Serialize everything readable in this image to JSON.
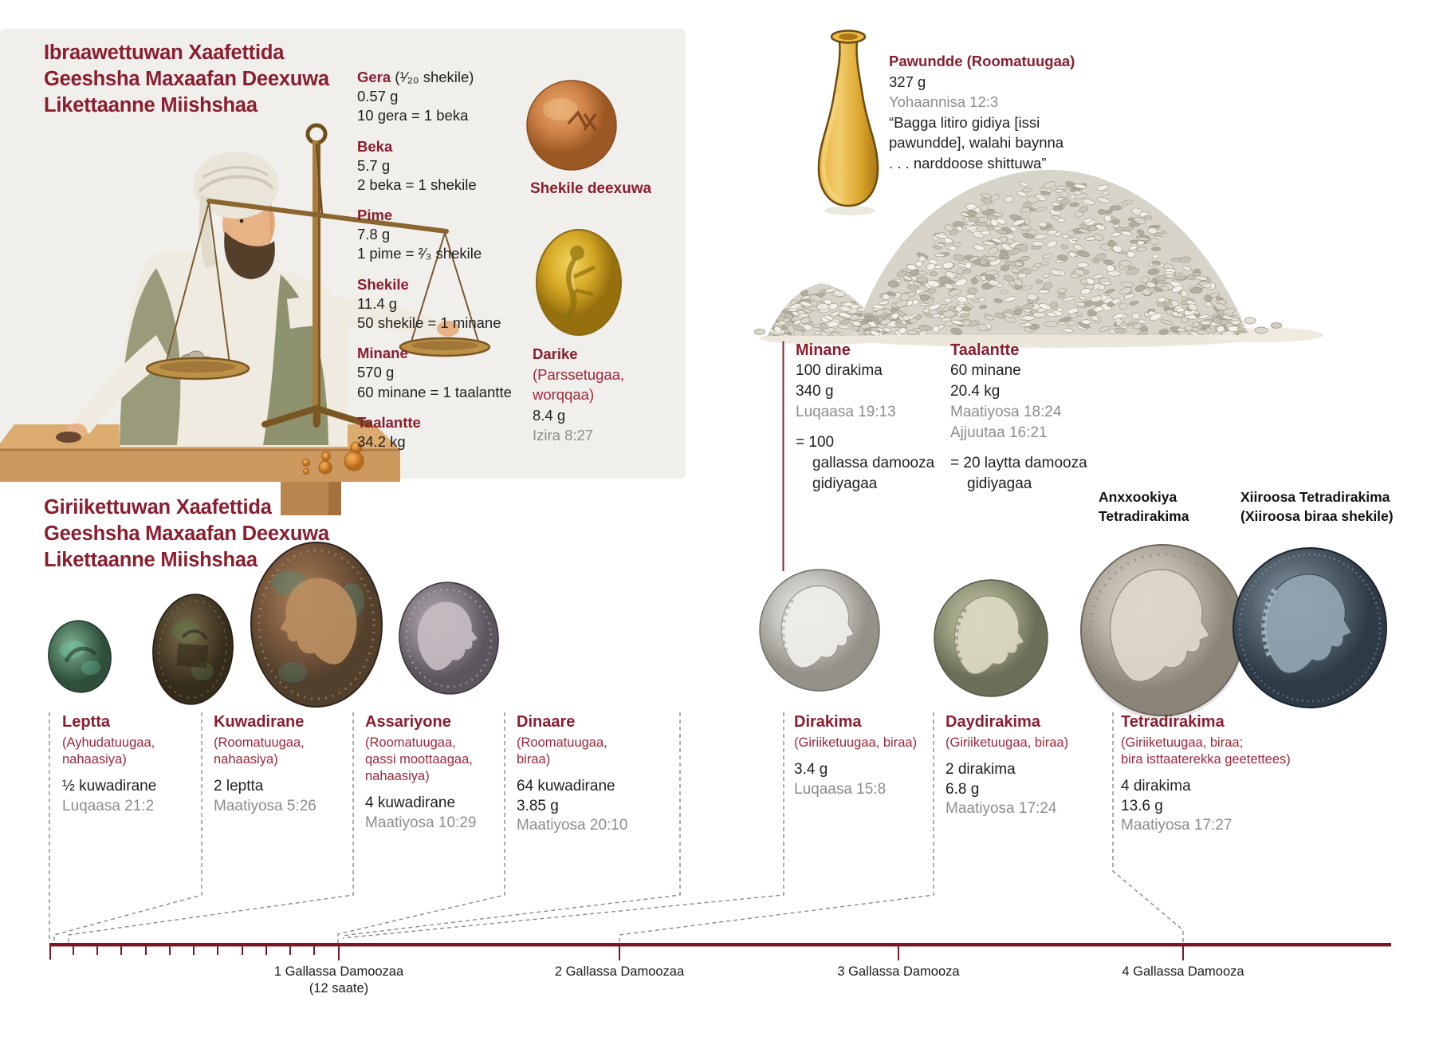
{
  "hebrew_section": {
    "title_lines": [
      "Ibraawettuwan Xaafettida",
      "Geeshsha Maxaafan Deexuwa",
      "Likettaanne Miishshaa"
    ],
    "weights": [
      {
        "name": "Gera",
        "suffix": " (¹⁄₂₀ shekile)",
        "line1": "0.57 g",
        "line2": "10 gera = 1 beka"
      },
      {
        "name": "Beka",
        "line1": "5.7 g",
        "line2": "2 beka = 1 shekile"
      },
      {
        "name": "Pime",
        "line1": "7.8 g",
        "line2": "1 pime = ²⁄₃ shekile"
      },
      {
        "name": "Shekile",
        "line1": "11.4 g",
        "line2": "50 shekile = 1 minane"
      },
      {
        "name": "Minane",
        "line1": "570 g",
        "line2": "60 minane = 1 taalantte"
      },
      {
        "name": "Taalantte",
        "line1": "34.2 kg"
      }
    ],
    "shekel_stone_caption": "Shekile deexuwa",
    "daric": {
      "name": "Darike",
      "origin_line1": "(Parssetugaa,",
      "origin_line2": "worqqaa)",
      "weight": "8.4 g",
      "ref": "Izira 8:27"
    }
  },
  "pound": {
    "heading": "Pawundde (Roomatuugaa)",
    "weight": "327 g",
    "ref": "Yohaannisa 12:3",
    "quote_line1": "“Bagga litiro gidiya [issi",
    "quote_line2": "pawundde], walahi baynna",
    "quote_line3": ". . . narddoose shittuwa”"
  },
  "mina": {
    "name": "Minane",
    "line1": "100 dirakima",
    "line2": "340 g",
    "ref": "Luqaasa 19:13",
    "equiv_line1": "= 100",
    "equiv_line2": "gallassa damooza",
    "equiv_line3": "gidiyagaa"
  },
  "talent": {
    "name": "Taalantte",
    "line1": "60 minane",
    "line2": "20.4 kg",
    "ref1": "Maatiyosa 18:24",
    "ref2": "Ajjuutaa 16:21",
    "equiv_line1": "= 20 laytta damooza",
    "equiv_line2": "gidiyagaa"
  },
  "greek_section": {
    "title_lines": [
      "Giriikettuwan Xaafettida",
      "Geeshsha Maxaafan Deexuwa",
      "Likettaanne Miishshaa"
    ]
  },
  "coins": [
    {
      "name": "Leptta",
      "origin_line1": "(Ayhudatuugaa,",
      "origin_line2": "nahaasiya)",
      "value_line1": "½ kuwadirane",
      "ref": "Luqaasa 21:2"
    },
    {
      "name": "Kuwadirane",
      "origin_line1": "(Roomatuugaa,",
      "origin_line2": "nahaasiya)",
      "value_line1": "2 leptta",
      "ref": "Maatiyosa 5:26"
    },
    {
      "name": "Assariyone",
      "origin_line1": "(Roomatuugaa,",
      "origin_line2": "qassi moottaagaa,",
      "origin_line3": "nahaasiya)",
      "value_line1": "4 kuwadirane",
      "ref": "Maatiyosa 10:29"
    },
    {
      "name": "Dinaare",
      "origin_line1": "(Roomatuugaa,",
      "origin_line2": "biraa)",
      "value_line1": "64 kuwadirane",
      "value_line2": "3.85 g",
      "ref": "Maatiyosa 20:10"
    },
    {
      "name": "Dirakima",
      "origin_line1": "(Giriiketuugaa, biraa)",
      "value_line1": "3.4 g",
      "ref": "Luqaasa 15:8"
    },
    {
      "name": "Daydirakima",
      "origin_line1": "(Giriiketuugaa, biraa)",
      "value_line1": "2 dirakima",
      "value_line2": "6.8 g",
      "ref": "Maatiyosa 17:24"
    },
    {
      "name": "Tetradirakima",
      "origin_line1": "(Giriiketuugaa, biraa;",
      "origin_line2": "bira isttaaterekka geetettees)",
      "value_line1": "4 dirakima",
      "value_line2": "13.6 g",
      "ref": "Maatiyosa 17:27"
    }
  ],
  "big_coin_labels": {
    "antioch_line1": "Anxxookiya",
    "antioch_line2": "Tetradirakima",
    "tyre_line1": "Xiiroosa Tetradirakima",
    "tyre_line2": "(Xiiroosa biraa shekile)"
  },
  "timeline": {
    "label1": "1 Gallassa Damoozaa",
    "label1_sub": "(12 saate)",
    "label2": "2 Gallassa Damoozaa",
    "label3": "3 Gallassa Damooza",
    "label4": "4 Gallassa Damooza"
  },
  "colors": {
    "heading_red": "#8a1e2f",
    "accent_red": "#9e2839",
    "timeline_red": "#7d1724",
    "ref_gray": "#8d8d8d"
  }
}
